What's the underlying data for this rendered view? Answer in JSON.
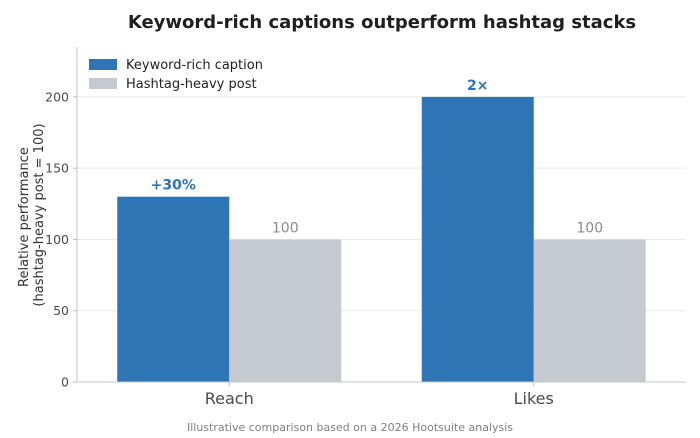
{
  "chart_data": {
    "type": "bar",
    "title": "Keyword-rich captions outperform hashtag stacks",
    "xlabel": "",
    "ylabel": "Relative performance\n(hashtag-heavy post = 100)",
    "categories": [
      "Reach",
      "Likes"
    ],
    "series": [
      {
        "name": "Keyword-rich caption",
        "values": [
          130,
          200
        ],
        "color": "#2e75b6",
        "labels": [
          "+30%",
          "2×"
        ],
        "label_color": "#2e75b6",
        "label_bold": true
      },
      {
        "name": "Hashtag-heavy post",
        "values": [
          100,
          100
        ],
        "color": "#c5cad1",
        "labels": [
          "100",
          "100"
        ],
        "label_color": "#8a8a8a",
        "label_bold": false
      }
    ],
    "ylim": [
      0,
      235
    ],
    "yticks": [
      0,
      50,
      100,
      150,
      200
    ],
    "grid": true,
    "legend_position": "top-left",
    "note": "Illustrative comparison based on a 2026 Hootsuite analysis"
  }
}
